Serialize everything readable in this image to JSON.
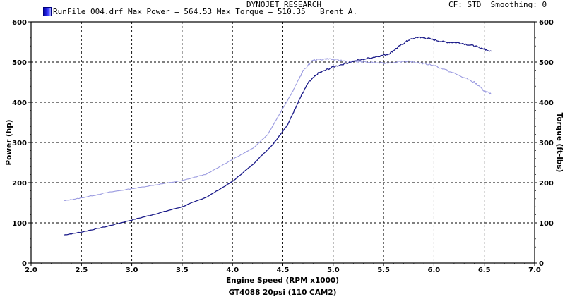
{
  "header": {
    "company": "DYNOJET RESEARCH",
    "settings": "CF: STD  Smoothing: 0",
    "run_label": "RunFile_004.drf Max Power = 564.53 Max Torque = 510.35",
    "operator": "Brent A."
  },
  "chart_data": {
    "type": "line",
    "xlabel": "Engine Speed (RPM x1000)",
    "ylabel_left": "Power (hp)",
    "ylabel_right": "Torque (ft-lbs)",
    "footer": "GT4088 20psi (110 CAM2)",
    "xlim": [
      2.0,
      7.0
    ],
    "ylim": [
      0,
      600
    ],
    "x_ticks": [
      "2.0",
      "2.5",
      "3.0",
      "3.5",
      "4.0",
      "4.5",
      "5.0",
      "5.5",
      "6.0",
      "6.5",
      "7.0"
    ],
    "y_ticks": [
      "0",
      "100",
      "200",
      "300",
      "400",
      "500",
      "600"
    ],
    "grid": true,
    "series": [
      {
        "key": "power",
        "color": "#1c1c8a",
        "points": [
          [
            2.33,
            70
          ],
          [
            2.5,
            77
          ],
          [
            2.75,
            91
          ],
          [
            3.0,
            107
          ],
          [
            3.25,
            123
          ],
          [
            3.5,
            140
          ],
          [
            3.75,
            165
          ],
          [
            4.0,
            203
          ],
          [
            4.2,
            245
          ],
          [
            4.4,
            295
          ],
          [
            4.55,
            345
          ],
          [
            4.65,
            400
          ],
          [
            4.75,
            448
          ],
          [
            4.85,
            472
          ],
          [
            5.0,
            488
          ],
          [
            5.2,
            502
          ],
          [
            5.4,
            512
          ],
          [
            5.55,
            520
          ],
          [
            5.65,
            538
          ],
          [
            5.75,
            555
          ],
          [
            5.85,
            562
          ],
          [
            5.95,
            558
          ],
          [
            6.1,
            550
          ],
          [
            6.25,
            548
          ],
          [
            6.4,
            540
          ],
          [
            6.5,
            532
          ],
          [
            6.57,
            527
          ]
        ]
      },
      {
        "key": "torque",
        "color": "#9a9ae0",
        "points": [
          [
            2.33,
            155
          ],
          [
            2.5,
            162
          ],
          [
            2.75,
            175
          ],
          [
            3.0,
            185
          ],
          [
            3.25,
            195
          ],
          [
            3.5,
            205
          ],
          [
            3.75,
            222
          ],
          [
            4.0,
            258
          ],
          [
            4.2,
            285
          ],
          [
            4.35,
            320
          ],
          [
            4.5,
            385
          ],
          [
            4.6,
            428
          ],
          [
            4.7,
            478
          ],
          [
            4.8,
            505
          ],
          [
            4.95,
            508
          ],
          [
            5.1,
            503
          ],
          [
            5.3,
            500
          ],
          [
            5.5,
            497
          ],
          [
            5.7,
            502
          ],
          [
            5.8,
            500
          ],
          [
            6.0,
            492
          ],
          [
            6.2,
            472
          ],
          [
            6.4,
            450
          ],
          [
            6.5,
            428
          ],
          [
            6.57,
            420
          ]
        ]
      }
    ]
  }
}
